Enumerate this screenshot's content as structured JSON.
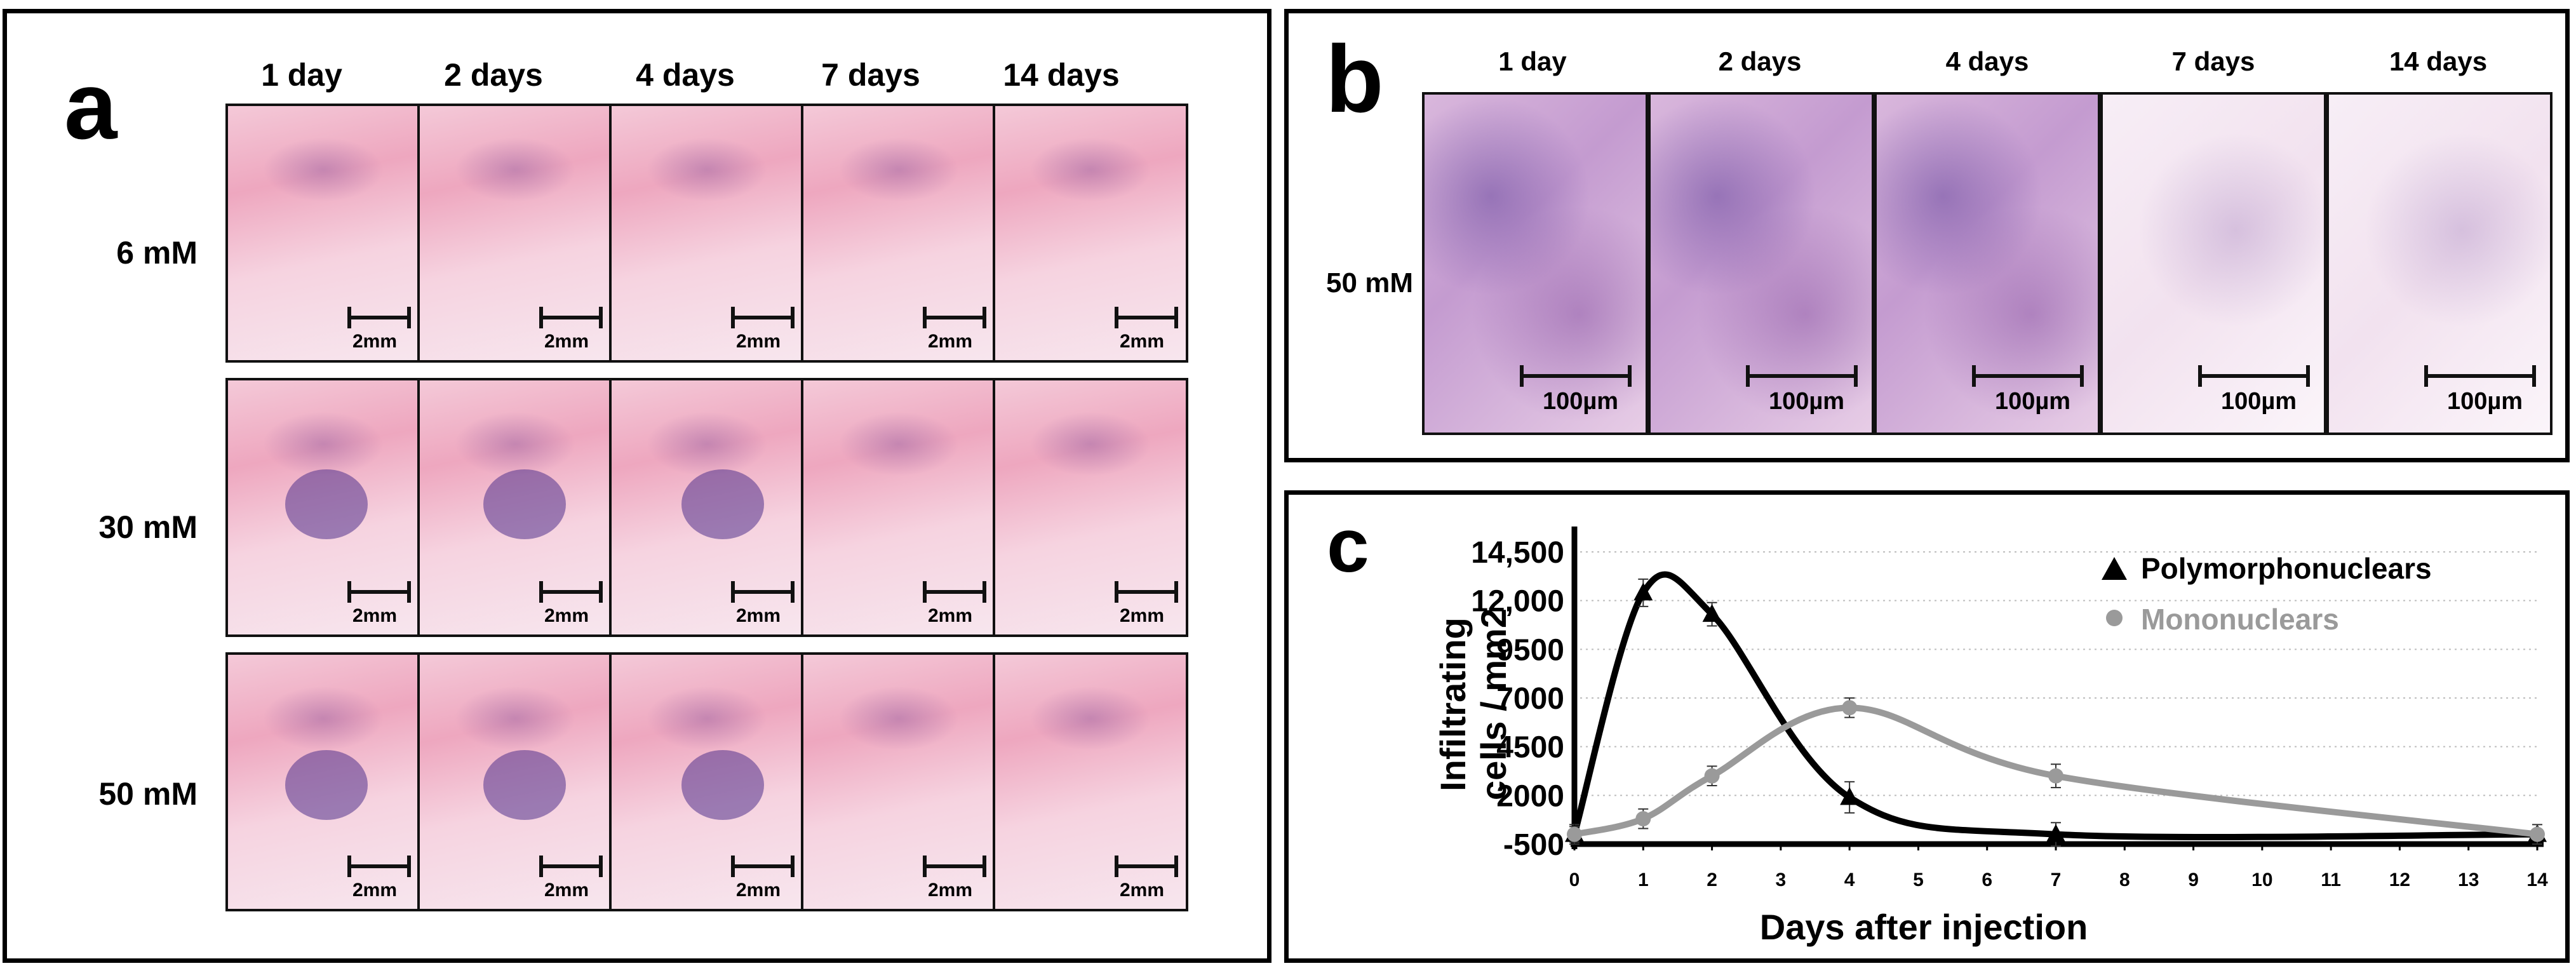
{
  "panel_a": {
    "letter": "a",
    "columns": [
      "1 day",
      "2 days",
      "4 days",
      "7 days",
      "14 days"
    ],
    "rows": [
      "6 mM",
      "30 mM",
      "50 mM"
    ],
    "scale_label": "2mm"
  },
  "panel_b": {
    "letter": "b",
    "columns": [
      "1 day",
      "2 days",
      "4 days",
      "7 days",
      "14 days"
    ],
    "row": "50 mM",
    "scale_label": "100µm"
  },
  "panel_c": {
    "letter": "c"
  },
  "chart_data": {
    "type": "line",
    "xlabel": "Days after injection",
    "ylabel": "Infiltrating cells / mm2",
    "xlim": [
      0,
      14
    ],
    "ylim": [
      -500,
      14500
    ],
    "x_ticks": [
      "0",
      "1",
      "2",
      "3",
      "4",
      "5",
      "6",
      "7",
      "8",
      "9",
      "10",
      "11",
      "12",
      "13",
      "14"
    ],
    "y_ticks": [
      "-500",
      "2000",
      "4500",
      "7000",
      "9500",
      "12,000",
      "14,500"
    ],
    "y_tick_values": [
      -500,
      2000,
      4500,
      7000,
      9500,
      12000,
      14500
    ],
    "grid": "horizontal dotted",
    "legend": "top-right",
    "series": [
      {
        "name": "Polymorphonuclears",
        "color": "#000000",
        "marker": "triangle",
        "x": [
          0,
          1,
          2,
          4,
          7,
          14
        ],
        "values": [
          0,
          12400,
          11300,
          1900,
          0,
          0
        ],
        "error": [
          500,
          700,
          600,
          800,
          600,
          200
        ]
      },
      {
        "name": "Mononuclears",
        "color": "#9a9a9a",
        "marker": "circle",
        "x": [
          0,
          1,
          2,
          4,
          7,
          14
        ],
        "values": [
          0,
          800,
          3000,
          6500,
          3000,
          0
        ],
        "error": [
          400,
          500,
          500,
          500,
          600,
          500
        ]
      }
    ]
  }
}
